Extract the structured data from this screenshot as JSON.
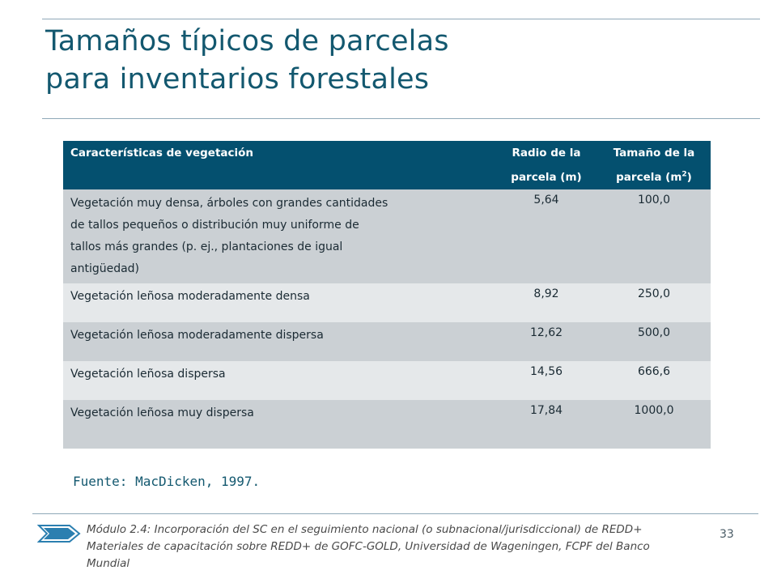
{
  "title": {
    "line1": "Tamaños típicos de parcelas",
    "line2": "para inventarios forestales"
  },
  "table": {
    "headers": {
      "col1": "Características de vegetación",
      "col2_line1": "Radio de la",
      "col2_line2": "parcela  (m)",
      "col3_line1": "Tamaño  de la",
      "col3_line2": "parcela  (m",
      "col3_sup": "2",
      "col3_end": ")"
    },
    "rows": [
      {
        "desc_lines": [
          "Vegetación muy densa, árboles con grandes cantidades",
          "de tallos pequeños o distribución muy uniforme de",
          "tallos más grandes (p. ej., plantaciones de igual",
          "antigüedad)"
        ],
        "radius": "5,64",
        "size": "100,0"
      },
      {
        "desc": "Vegetación leñosa moderadamente  densa",
        "radius": "8,92",
        "size": "250,0"
      },
      {
        "desc": "Vegetación leñosa moderadamente  dispersa",
        "radius": "12,62",
        "size": "500,0"
      },
      {
        "desc": "Vegetación leñosa dispersa",
        "radius": "14,56",
        "size": "666,6"
      },
      {
        "desc": "Vegetación leñosa muy dispersa",
        "radius": "17,84",
        "size": "1000,0"
      }
    ]
  },
  "source": "Fuente: MacDicken, 1997.",
  "footer": {
    "line1": "Módulo 2.4: Incorporación del SC en el seguimiento nacional (o subnacional/jurisdiccional) de REDD+",
    "line2": "Materiales de capacitación sobre REDD+ de GOFC-GOLD, Universidad de Wageningen, FCPF del Banco",
    "line3": "Mundial",
    "page_number": "33",
    "icon": "double-chevron-arrow-icon"
  },
  "colors": {
    "title": "#13586f",
    "header_bg": "#04506f",
    "row_dark": "#cbd0d4",
    "row_light": "#e5e8ea"
  }
}
